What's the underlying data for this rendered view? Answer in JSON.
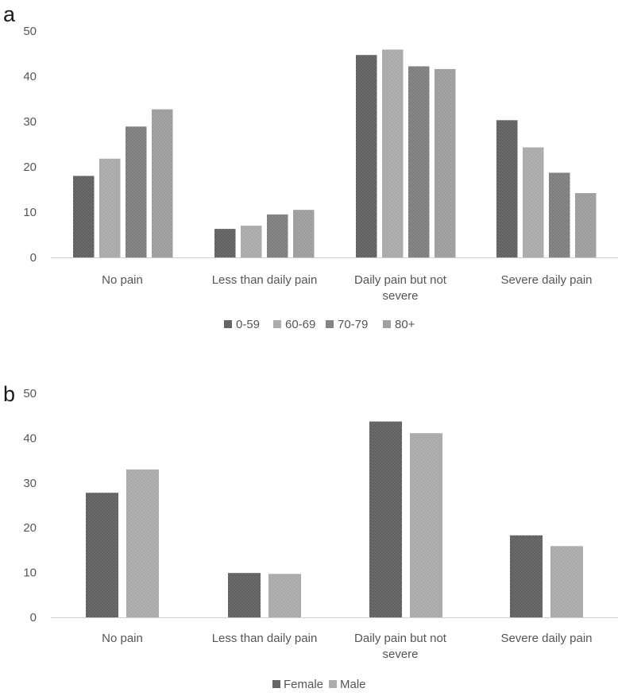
{
  "chart_data": [
    {
      "type": "bar",
      "panel_label": "a",
      "categories": [
        "No pain",
        "Less than daily pain",
        "Daily pain but not severe",
        "Severe daily pain"
      ],
      "category_lines": [
        [
          "No pain"
        ],
        [
          "Less than daily pain"
        ],
        [
          "Daily pain but not",
          "severe"
        ],
        [
          "Severe daily pain"
        ]
      ],
      "series": [
        {
          "name": "0-59",
          "color": "#5f5f5f",
          "values": [
            18,
            6.3,
            44.7,
            30.3
          ]
        },
        {
          "name": "60-69",
          "color": "#a9a9a9",
          "values": [
            21.8,
            7,
            45.9,
            24.3
          ]
        },
        {
          "name": "70-79",
          "color": "#7d7d7d",
          "values": [
            28.9,
            9.5,
            42.2,
            18.7
          ]
        },
        {
          "name": "80+",
          "color": "#9c9c9c",
          "values": [
            32.7,
            10.5,
            41.6,
            14.2
          ]
        }
      ],
      "ylim": [
        0,
        50
      ],
      "yticks": [
        0,
        10,
        20,
        30,
        40,
        50
      ],
      "xlabel": "",
      "ylabel": "",
      "legend": "bottom-center"
    },
    {
      "type": "bar",
      "panel_label": "b",
      "categories": [
        "No pain",
        "Less than daily pain",
        "Daily pain but not severe",
        "Severe daily pain"
      ],
      "category_lines": [
        [
          "No pain"
        ],
        [
          "Less than daily pain"
        ],
        [
          "Daily pain but not",
          "severe"
        ],
        [
          "Severe daily pain"
        ]
      ],
      "series": [
        {
          "name": "Female",
          "color": "#5f5f5f",
          "values": [
            27.8,
            9.9,
            43.7,
            18.3
          ]
        },
        {
          "name": "Male",
          "color": "#a9a9a9",
          "values": [
            33,
            9.7,
            41.1,
            15.9
          ]
        }
      ],
      "ylim": [
        0,
        50
      ],
      "yticks": [
        0,
        10,
        20,
        30,
        40,
        50
      ],
      "xlabel": "",
      "ylabel": "",
      "legend": "bottom-center"
    }
  ]
}
